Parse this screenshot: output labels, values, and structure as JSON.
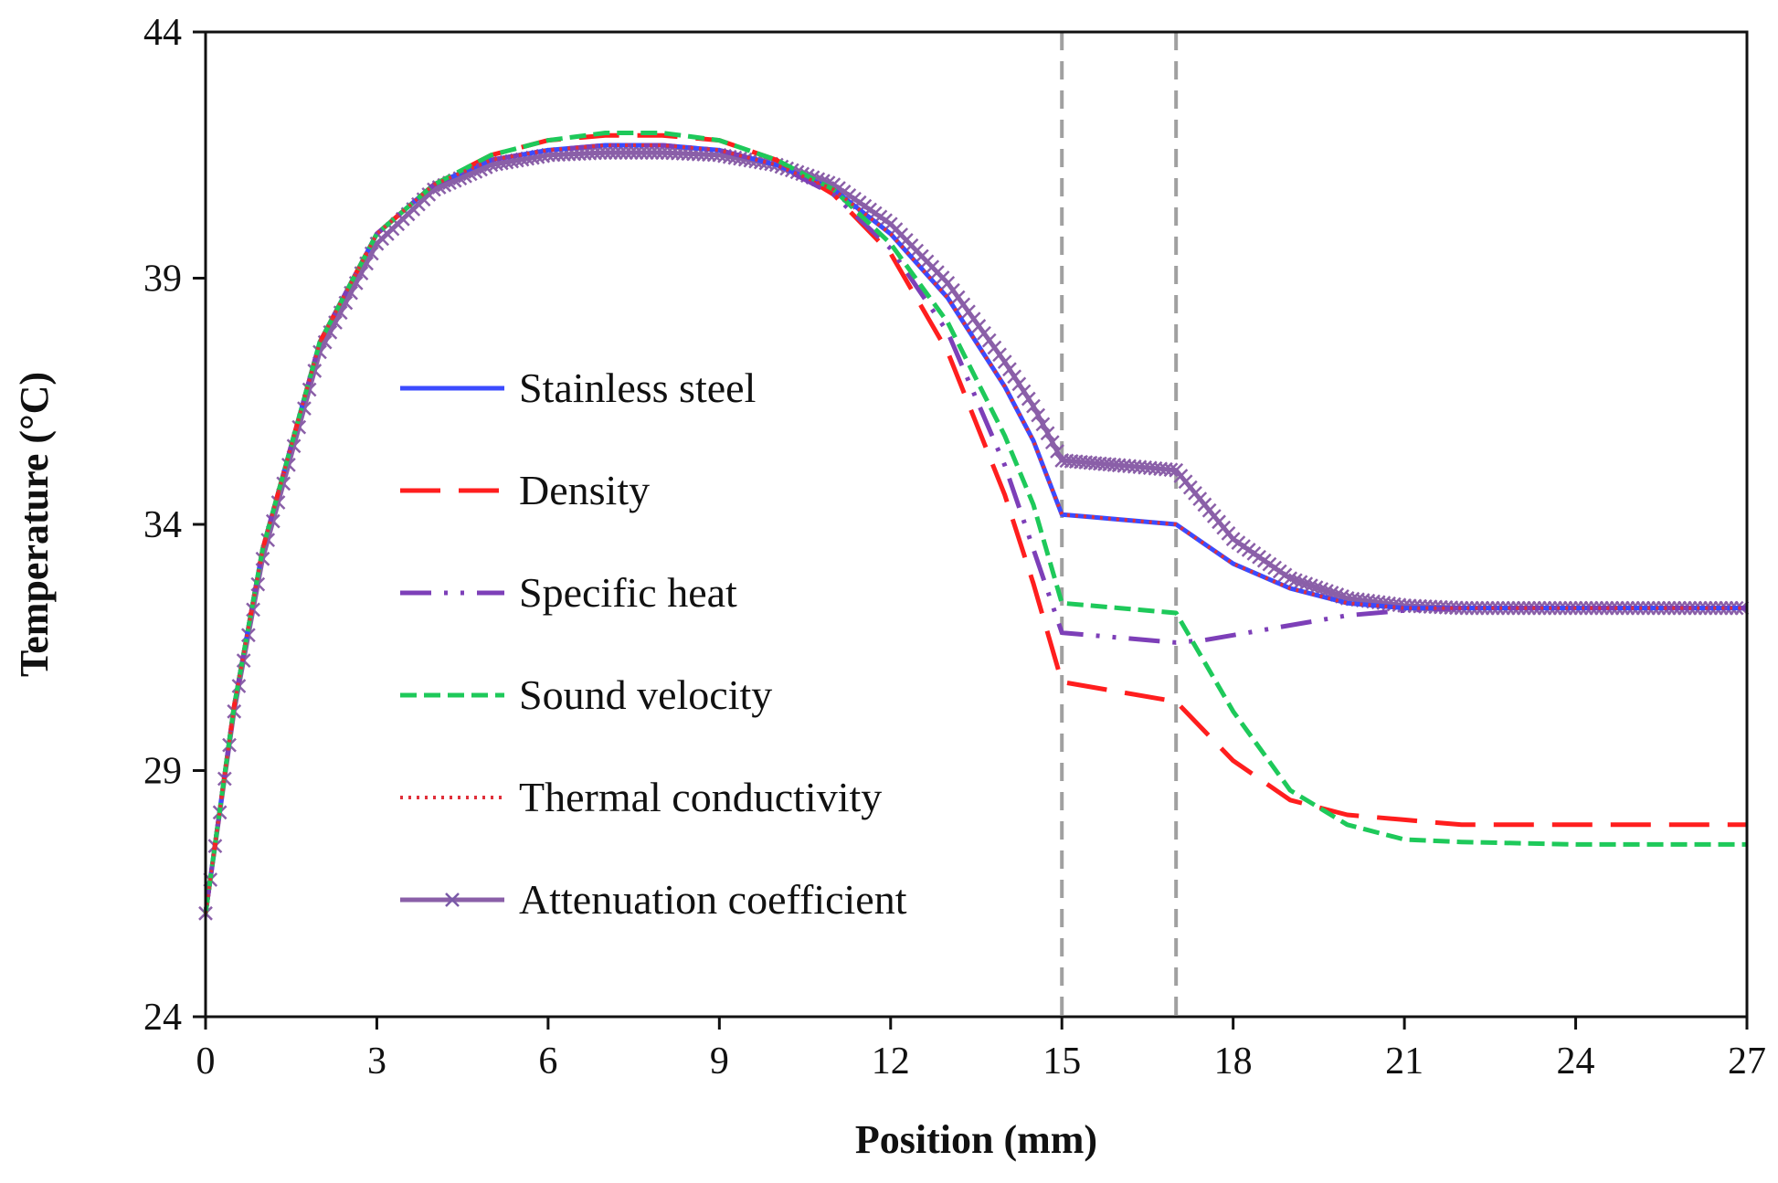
{
  "chart_data": {
    "type": "line",
    "xlabel": "Position (mm)",
    "ylabel": "Temperature (°C)",
    "xlim": [
      0,
      27
    ],
    "ylim": [
      24,
      44
    ],
    "x_ticks": [
      "0",
      "3",
      "6",
      "9",
      "12",
      "15",
      "18",
      "21",
      "24",
      "27"
    ],
    "y_ticks": [
      "24",
      "29",
      "34",
      "39",
      "44"
    ],
    "grid": false,
    "legend_position": "center-left",
    "reference_lines_x": [
      15,
      17
    ],
    "series": [
      {
        "name": "Stainless steel",
        "color": "#3b4bff",
        "style": "solid",
        "x": [
          0,
          0.5,
          1,
          2,
          3,
          4,
          5,
          6,
          7,
          8,
          9,
          10,
          11,
          12,
          13,
          14,
          14.5,
          15,
          15.5,
          16,
          17,
          17.5,
          18,
          19,
          20,
          21,
          22,
          24,
          27
        ],
        "y": [
          26.1,
          30.3,
          33.5,
          37.7,
          39.9,
          40.9,
          41.4,
          41.6,
          41.7,
          41.7,
          41.6,
          41.3,
          40.8,
          39.9,
          38.6,
          36.8,
          35.7,
          34.2,
          34.15,
          34.1,
          34.0,
          33.6,
          33.2,
          32.7,
          32.4,
          32.3,
          32.3,
          32.3,
          32.3
        ]
      },
      {
        "name": "Density",
        "color": "#ff1e1e",
        "style": "dashed",
        "x": [
          0,
          0.5,
          1,
          2,
          3,
          4,
          5,
          6,
          7,
          8,
          9,
          10,
          11,
          12,
          13,
          14,
          14.5,
          15,
          16,
          17,
          17.5,
          18,
          19,
          20,
          21,
          22,
          24,
          27
        ],
        "y": [
          26.1,
          30.3,
          33.5,
          37.7,
          39.9,
          40.9,
          41.5,
          41.8,
          41.9,
          41.9,
          41.8,
          41.4,
          40.7,
          39.5,
          37.5,
          34.6,
          32.8,
          30.8,
          30.6,
          30.4,
          29.8,
          29.2,
          28.4,
          28.1,
          28.0,
          27.9,
          27.9,
          27.9
        ]
      },
      {
        "name": "Specific heat",
        "color": "#7d3fb8",
        "style": "dashdot",
        "x": [
          0,
          0.5,
          1,
          2,
          3,
          4,
          5,
          6,
          7,
          8,
          9,
          10,
          11,
          12,
          13,
          14,
          14.5,
          15,
          16,
          17,
          17.5,
          18,
          19,
          20,
          21,
          22,
          24,
          27
        ],
        "y": [
          26.1,
          30.3,
          33.5,
          37.7,
          39.9,
          40.9,
          41.4,
          41.6,
          41.7,
          41.7,
          41.6,
          41.3,
          40.7,
          39.6,
          37.9,
          35.2,
          33.5,
          31.8,
          31.7,
          31.6,
          31.65,
          31.75,
          31.95,
          32.15,
          32.25,
          32.3,
          32.3,
          32.3
        ]
      },
      {
        "name": "Sound velocity",
        "color": "#1ec95a",
        "style": "dashed-short",
        "x": [
          0,
          0.5,
          1,
          2,
          3,
          4,
          5,
          6,
          7,
          8,
          9,
          10,
          11,
          12,
          13,
          14,
          14.5,
          15,
          16,
          17,
          17.5,
          18,
          19,
          20,
          21,
          22,
          24,
          27
        ],
        "y": [
          26.1,
          30.3,
          33.5,
          37.7,
          39.9,
          40.9,
          41.5,
          41.8,
          41.95,
          41.95,
          41.8,
          41.4,
          40.8,
          39.7,
          38.1,
          35.8,
          34.4,
          32.4,
          32.3,
          32.2,
          31.2,
          30.2,
          28.6,
          27.9,
          27.6,
          27.55,
          27.5,
          27.5
        ]
      },
      {
        "name": "Thermal conductivity",
        "color": "#e0303a",
        "style": "dotted",
        "x": [
          0,
          0.5,
          1,
          2,
          3,
          4,
          5,
          6,
          7,
          8,
          9,
          10,
          11,
          12,
          13,
          14,
          14.5,
          15,
          15.5,
          16,
          17,
          17.5,
          18,
          19,
          20,
          21,
          22,
          24,
          27
        ],
        "y": [
          26.1,
          30.3,
          33.5,
          37.7,
          39.9,
          40.9,
          41.4,
          41.6,
          41.7,
          41.7,
          41.6,
          41.3,
          40.8,
          39.9,
          38.6,
          36.8,
          35.7,
          34.2,
          34.15,
          34.1,
          34.0,
          33.6,
          33.2,
          32.7,
          32.4,
          32.3,
          32.3,
          32.3,
          32.3
        ]
      },
      {
        "name": "Attenuation coefficient",
        "color": "#8a5fa8",
        "style": "markers",
        "x": [
          0,
          0.5,
          1,
          2,
          3,
          4,
          5,
          6,
          7,
          8,
          9,
          10,
          11,
          12,
          13,
          14,
          14.5,
          15,
          15.5,
          16,
          17,
          17.5,
          18,
          19,
          20,
          21,
          22,
          24,
          27
        ],
        "y": [
          26.1,
          30.2,
          33.3,
          37.5,
          39.7,
          40.8,
          41.3,
          41.5,
          41.55,
          41.55,
          41.5,
          41.3,
          40.9,
          40.1,
          38.9,
          37.3,
          36.4,
          35.3,
          35.25,
          35.2,
          35.1,
          34.4,
          33.7,
          32.9,
          32.5,
          32.35,
          32.3,
          32.3,
          32.3
        ]
      }
    ]
  }
}
